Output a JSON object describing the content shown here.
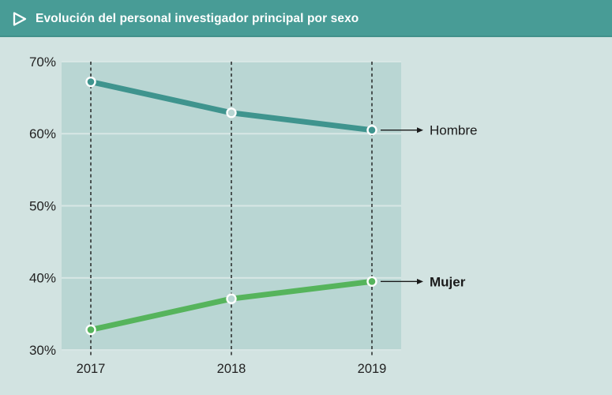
{
  "header": {
    "title": "Evolución del personal investigador principal por sexo",
    "icon": "triangle-right-outline",
    "bg_color": "#489c96",
    "text_color": "#ffffff"
  },
  "colors": {
    "page_bg": "#d2e3e1",
    "plot_bg": "#b9d6d3",
    "gridline": "#d8e7e5",
    "axis_text": "#222222",
    "guide_dash": "#1a1a1a",
    "annotation_arrow": "#1a1a1a",
    "annotation_text": "#1a1a1a"
  },
  "chart_data": {
    "type": "line",
    "title": "Evolución del personal investigador principal por sexo",
    "categories": [
      "2017",
      "2018",
      "2019"
    ],
    "series": [
      {
        "name": "Hombre",
        "values": [
          67.2,
          62.9,
          60.5
        ],
        "color": "#3f948e",
        "label_bold": false
      },
      {
        "name": "Mujer",
        "values": [
          32.8,
          37.1,
          39.5
        ],
        "color": "#56b45c",
        "label_bold": true
      }
    ],
    "xlabel": "",
    "ylabel": "",
    "ylim": [
      30,
      70
    ],
    "yticks": [
      70,
      60,
      50,
      40,
      30
    ],
    "ytick_suffix": "%",
    "grid": "horizontal",
    "vertical_guides": "dashed line at each category",
    "legend": "arrow-annotated labels at right end of each line",
    "marker_style": "circle with white ring; endpoints filled with series color, middle point hollow"
  }
}
